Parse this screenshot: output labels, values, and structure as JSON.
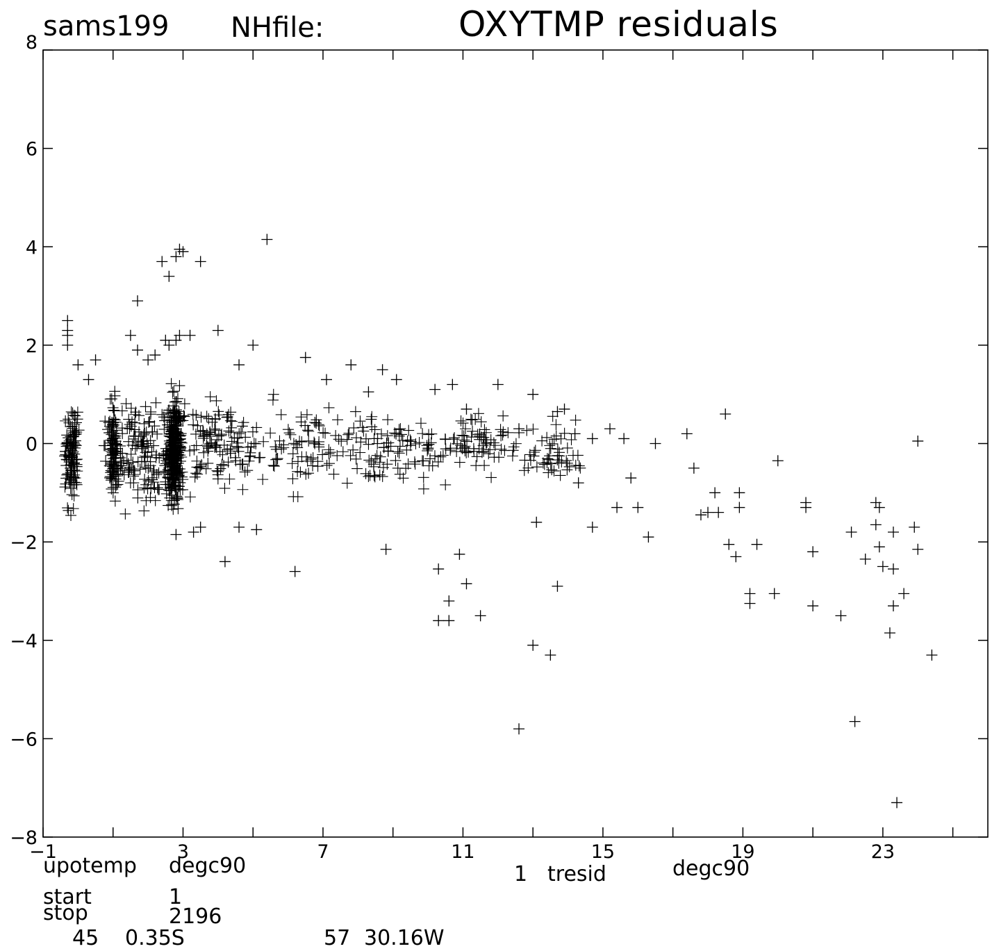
{
  "header": {
    "station": "sams199",
    "file_label": "NHfile:",
    "title": "OXYTMP residuals"
  },
  "footer": {
    "x_variable": "upotemp",
    "x_unit": "degc90",
    "y_index": "1",
    "y_variable": "tresid",
    "y_unit": "degc90",
    "start_label": "start",
    "start_value": "1",
    "stop_label": "stop",
    "stop_value": "2196",
    "lat_deg": "45",
    "lat_min": "0.35S",
    "lon_deg": "57",
    "lon_min": "30.16W"
  },
  "colors": {
    "ink": "#000000",
    "background": "#ffffff"
  },
  "chart_data": {
    "type": "scatter",
    "title": "OXYTMP residuals",
    "xlabel": "upotemp degc90",
    "ylabel": "tresid degc90",
    "xlim": [
      -1,
      26
    ],
    "ylim": [
      -8,
      8
    ],
    "x_tick_labels": [
      "-1",
      "3",
      "7",
      "11",
      "15",
      "19",
      "23"
    ],
    "y_tick_labels": [
      "8",
      "6",
      "4",
      "2",
      "0",
      "-2",
      "-4",
      "-6",
      "-8"
    ],
    "x_ticks": [
      -1,
      1,
      3,
      5,
      7,
      9,
      11,
      13,
      15,
      17,
      19,
      21,
      23,
      25
    ],
    "y_ticks": [
      -8,
      -6,
      -4,
      -2,
      0,
      2,
      4,
      6,
      8
    ],
    "marker": "plus",
    "grid": false,
    "points": [
      [
        -0.3,
        2.5
      ],
      [
        -0.3,
        2.3
      ],
      [
        -0.3,
        2.2
      ],
      [
        -0.3,
        2.0
      ],
      [
        0.0,
        1.6
      ],
      [
        0.3,
        1.3
      ],
      [
        0.5,
        1.7
      ],
      [
        1.5,
        2.2
      ],
      [
        1.7,
        1.9
      ],
      [
        2.2,
        1.8
      ],
      [
        2.0,
        1.7
      ],
      [
        1.7,
        2.9
      ],
      [
        2.4,
        3.7
      ],
      [
        2.6,
        3.4
      ],
      [
        2.8,
        3.8
      ],
      [
        2.9,
        3.95
      ],
      [
        3.0,
        3.9
      ],
      [
        3.5,
        3.7
      ],
      [
        5.4,
        4.15
      ],
      [
        5.0,
        2.0
      ],
      [
        3.2,
        2.2
      ],
      [
        4.0,
        2.3
      ],
      [
        4.6,
        1.6
      ],
      [
        2.8,
        2.1
      ],
      [
        2.9,
        2.2
      ],
      [
        2.5,
        2.1
      ],
      [
        2.6,
        2.0
      ],
      [
        4.2,
        -2.4
      ],
      [
        6.2,
        -2.6
      ],
      [
        4.6,
        -1.7
      ],
      [
        5.1,
        -1.75
      ],
      [
        3.3,
        -1.8
      ],
      [
        2.8,
        -1.85
      ],
      [
        3.5,
        -1.7
      ],
      [
        6.5,
        1.75
      ],
      [
        7.1,
        1.3
      ],
      [
        7.8,
        1.6
      ],
      [
        8.7,
        1.5
      ],
      [
        9.1,
        1.3
      ],
      [
        8.3,
        1.05
      ],
      [
        10.2,
        1.1
      ],
      [
        10.7,
        1.2
      ],
      [
        11.1,
        0.7
      ],
      [
        12.0,
        1.2
      ],
      [
        12.6,
        0.3
      ],
      [
        13.0,
        1.0
      ],
      [
        13.9,
        0.7
      ],
      [
        13.7,
        0.65
      ],
      [
        14.2,
        0.2
      ],
      [
        14.7,
        0.1
      ],
      [
        15.2,
        0.3
      ],
      [
        8.8,
        -2.15
      ],
      [
        10.3,
        -2.55
      ],
      [
        10.3,
        -3.6
      ],
      [
        10.6,
        -3.6
      ],
      [
        10.6,
        -3.2
      ],
      [
        10.9,
        -2.25
      ],
      [
        11.1,
        -2.85
      ],
      [
        11.5,
        -3.5
      ],
      [
        12.6,
        -5.8
      ],
      [
        13.0,
        -4.1
      ],
      [
        13.1,
        -1.6
      ],
      [
        13.5,
        -4.3
      ],
      [
        13.7,
        -2.9
      ],
      [
        14.3,
        -0.8
      ],
      [
        14.7,
        -1.7
      ],
      [
        15.4,
        -1.3
      ],
      [
        16.0,
        -1.3
      ],
      [
        16.3,
        -1.9
      ],
      [
        15.6,
        0.1
      ],
      [
        15.8,
        -0.7
      ],
      [
        16.5,
        0.0
      ],
      [
        17.4,
        0.2
      ],
      [
        17.6,
        -0.5
      ],
      [
        17.8,
        -1.45
      ],
      [
        18.0,
        -1.4
      ],
      [
        18.2,
        -1.0
      ],
      [
        18.3,
        -1.4
      ],
      [
        18.5,
        0.6
      ],
      [
        18.6,
        -2.05
      ],
      [
        18.8,
        -2.3
      ],
      [
        18.9,
        -1.0
      ],
      [
        18.9,
        -1.3
      ],
      [
        19.2,
        -3.25
      ],
      [
        19.2,
        -3.05
      ],
      [
        19.4,
        -2.05
      ],
      [
        19.9,
        -3.05
      ],
      [
        20.0,
        -0.35
      ],
      [
        20.8,
        -1.2
      ],
      [
        20.8,
        -1.3
      ],
      [
        21.0,
        -2.2
      ],
      [
        21.0,
        -3.3
      ],
      [
        21.8,
        -3.5
      ],
      [
        22.1,
        -1.8
      ],
      [
        22.2,
        -5.65
      ],
      [
        22.5,
        -2.35
      ],
      [
        22.8,
        -1.2
      ],
      [
        22.9,
        -1.3
      ],
      [
        22.8,
        -1.65
      ],
      [
        22.9,
        -2.1
      ],
      [
        23.0,
        -2.5
      ],
      [
        23.2,
        -3.85
      ],
      [
        23.3,
        -2.55
      ],
      [
        23.3,
        -3.3
      ],
      [
        23.3,
        -1.8
      ],
      [
        23.6,
        -3.05
      ],
      [
        23.9,
        -1.7
      ],
      [
        24.0,
        0.05
      ],
      [
        24.0,
        -2.15
      ],
      [
        24.4,
        -4.3
      ],
      [
        23.4,
        -7.3
      ]
    ]
  }
}
